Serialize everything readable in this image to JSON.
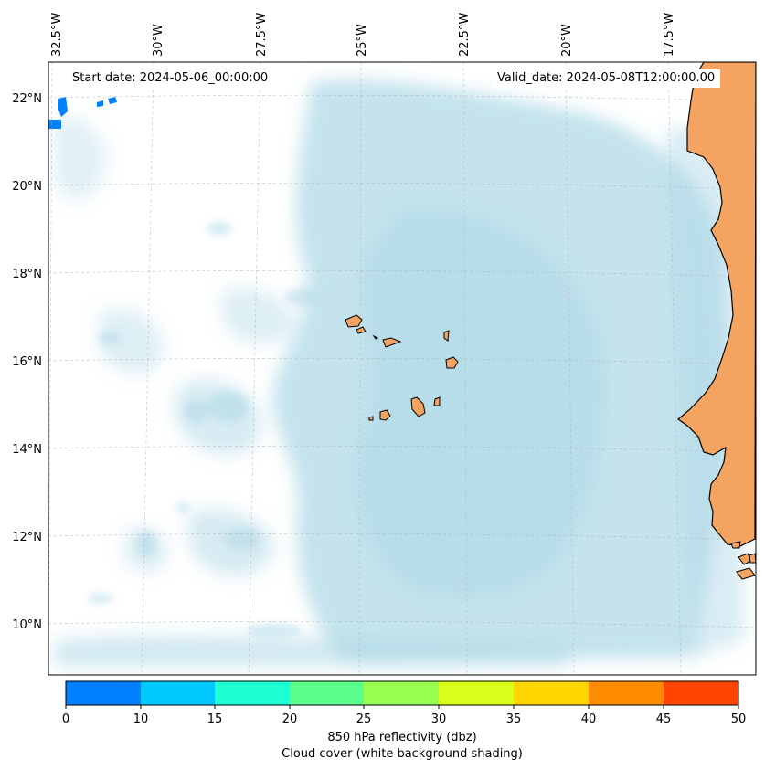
{
  "map": {
    "start_date": "Start date: 2024-05-06_00:00:00",
    "valid_date": "Valid_date: 2024-05-08T12:00:00.00",
    "lat_labels": [
      "22°N",
      "20°N",
      "18°N",
      "16°N",
      "14°N",
      "12°N",
      "10°N"
    ],
    "lon_labels": [
      "32.5°W",
      "30°W",
      "27.5°W",
      "25°W",
      "22.5°W",
      "20°W",
      "17.5°W"
    ],
    "colors": {
      "land": "#f4a460",
      "cloud": "#add8e6",
      "coastline": "#000000",
      "gridline": "#b0b0b0"
    }
  },
  "colorbar": {
    "ticks": [
      "0",
      "10",
      "15",
      "20",
      "25",
      "30",
      "35",
      "40",
      "45",
      "50"
    ],
    "colors": [
      "#007fff",
      "#00c8ff",
      "#1effd2",
      "#5cff8a",
      "#98ff52",
      "#d7ff1a",
      "#ffd700",
      "#ff8c00",
      "#ff4500"
    ],
    "title": "850 hPa reflectivity (dbz)",
    "subtitle": "Cloud cover (white background shading)"
  }
}
